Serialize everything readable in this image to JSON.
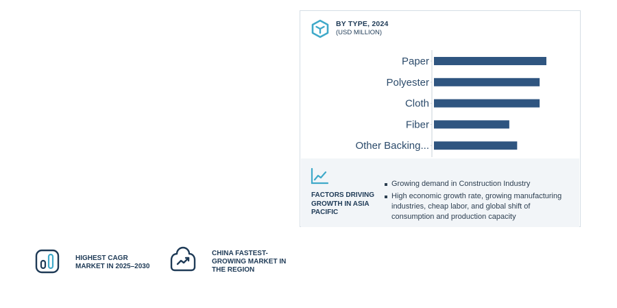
{
  "card": {
    "title": "BY TYPE, 2024",
    "subtitle": "(USD MILLION)"
  },
  "chart_data": {
    "type": "bar",
    "orientation": "horizontal",
    "categories": [
      "Paper",
      "Polyester",
      "Cloth",
      "Fiber",
      "Other Backing..."
    ],
    "values": [
      100,
      94,
      94,
      67,
      74
    ],
    "title": "BY TYPE, 2024",
    "subtitle": "(USD MILLION)",
    "xlabel": "",
    "ylabel": "",
    "xlim": [
      0,
      100
    ],
    "grid": false,
    "legend": "none",
    "bar_color": "#2f5580"
  },
  "factors": {
    "title": "FACTORS DRIVING GROWTH IN ASIA PACIFIC",
    "items": [
      "Growing demand in Construction Industry",
      "High economic growth rate, growing manufacturing industries, cheap labor, and global shift of consumption and production capacity"
    ]
  },
  "highlights": {
    "cagr": "HIGHEST CAGR MARKET IN 2025–2030",
    "china": "CHINA FASTEST-GROWING MARKET IN THE REGION"
  },
  "colors": {
    "accent": "#3fa9c9",
    "dark": "#1e3a56",
    "bar": "#2f5580"
  },
  "icons": {
    "card": "cube-icon",
    "factors": "line-chart-icon",
    "cagr": "cagr-gauge-icon",
    "china": "cloud-trend-icon"
  }
}
